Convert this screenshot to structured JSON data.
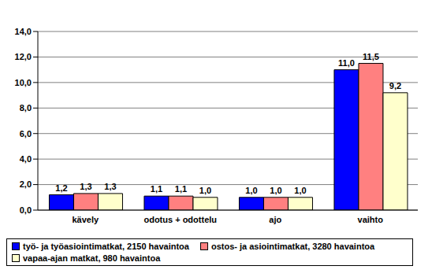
{
  "chart_data": {
    "type": "bar",
    "categories": [
      "kävely",
      "odotus + odottelu",
      "ajo",
      "vaihto"
    ],
    "series": [
      {
        "name": "työ- ja työasiointimatkat, 2150 havaintoa",
        "color": "#0000ff",
        "values": [
          1.2,
          1.1,
          1.0,
          11.0
        ],
        "value_labels": [
          "1,2",
          "1,1",
          "1,0",
          "11,0"
        ]
      },
      {
        "name": "ostos- ja asiointimatkat, 3280 havaintoa",
        "color": "#ff8080",
        "values": [
          1.3,
          1.1,
          1.0,
          11.5
        ],
        "value_labels": [
          "1,3",
          "1,1",
          "1,0",
          "11,5"
        ]
      },
      {
        "name": "vapaa-ajan matkat, 980 havaintoa",
        "color": "#ffffcc",
        "values": [
          1.3,
          1.0,
          1.0,
          9.2
        ],
        "value_labels": [
          "1,3",
          "1,0",
          "1,0",
          "9,2"
        ]
      }
    ],
    "ylim": [
      0,
      14
    ],
    "yticks": [
      {
        "value": 0,
        "label": "0,0"
      },
      {
        "value": 2,
        "label": "2,0"
      },
      {
        "value": 4,
        "label": "4,0"
      },
      {
        "value": 6,
        "label": "6,0"
      },
      {
        "value": 8,
        "label": "8,0"
      },
      {
        "value": 10,
        "label": "10,0"
      },
      {
        "value": 12,
        "label": "12,0"
      },
      {
        "value": 14,
        "label": "14,0"
      }
    ],
    "grid": true,
    "legend": "bottom",
    "data_labels": true
  }
}
